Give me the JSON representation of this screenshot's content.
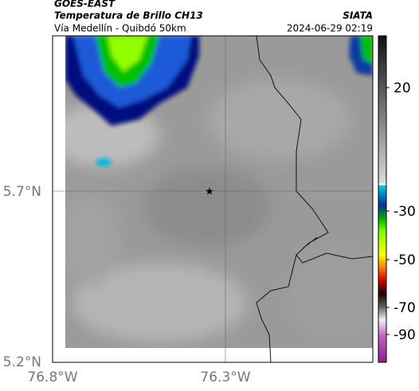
{
  "header": {
    "product": "GOES-EAST",
    "title": "Temperatura de Brillo CH13",
    "subtitle": "Vía Medellín - Quibdó 50km",
    "source": "SIATA",
    "datetime": "2024-06-29 02:19"
  },
  "map": {
    "lat_labels": [
      "5.7°N",
      "5.2°N"
    ],
    "lon_labels": [
      "76.8°W",
      "76.3°W"
    ]
  },
  "colorbar": {
    "ticks": [
      20,
      -30,
      -50,
      -70,
      -90
    ]
  }
}
